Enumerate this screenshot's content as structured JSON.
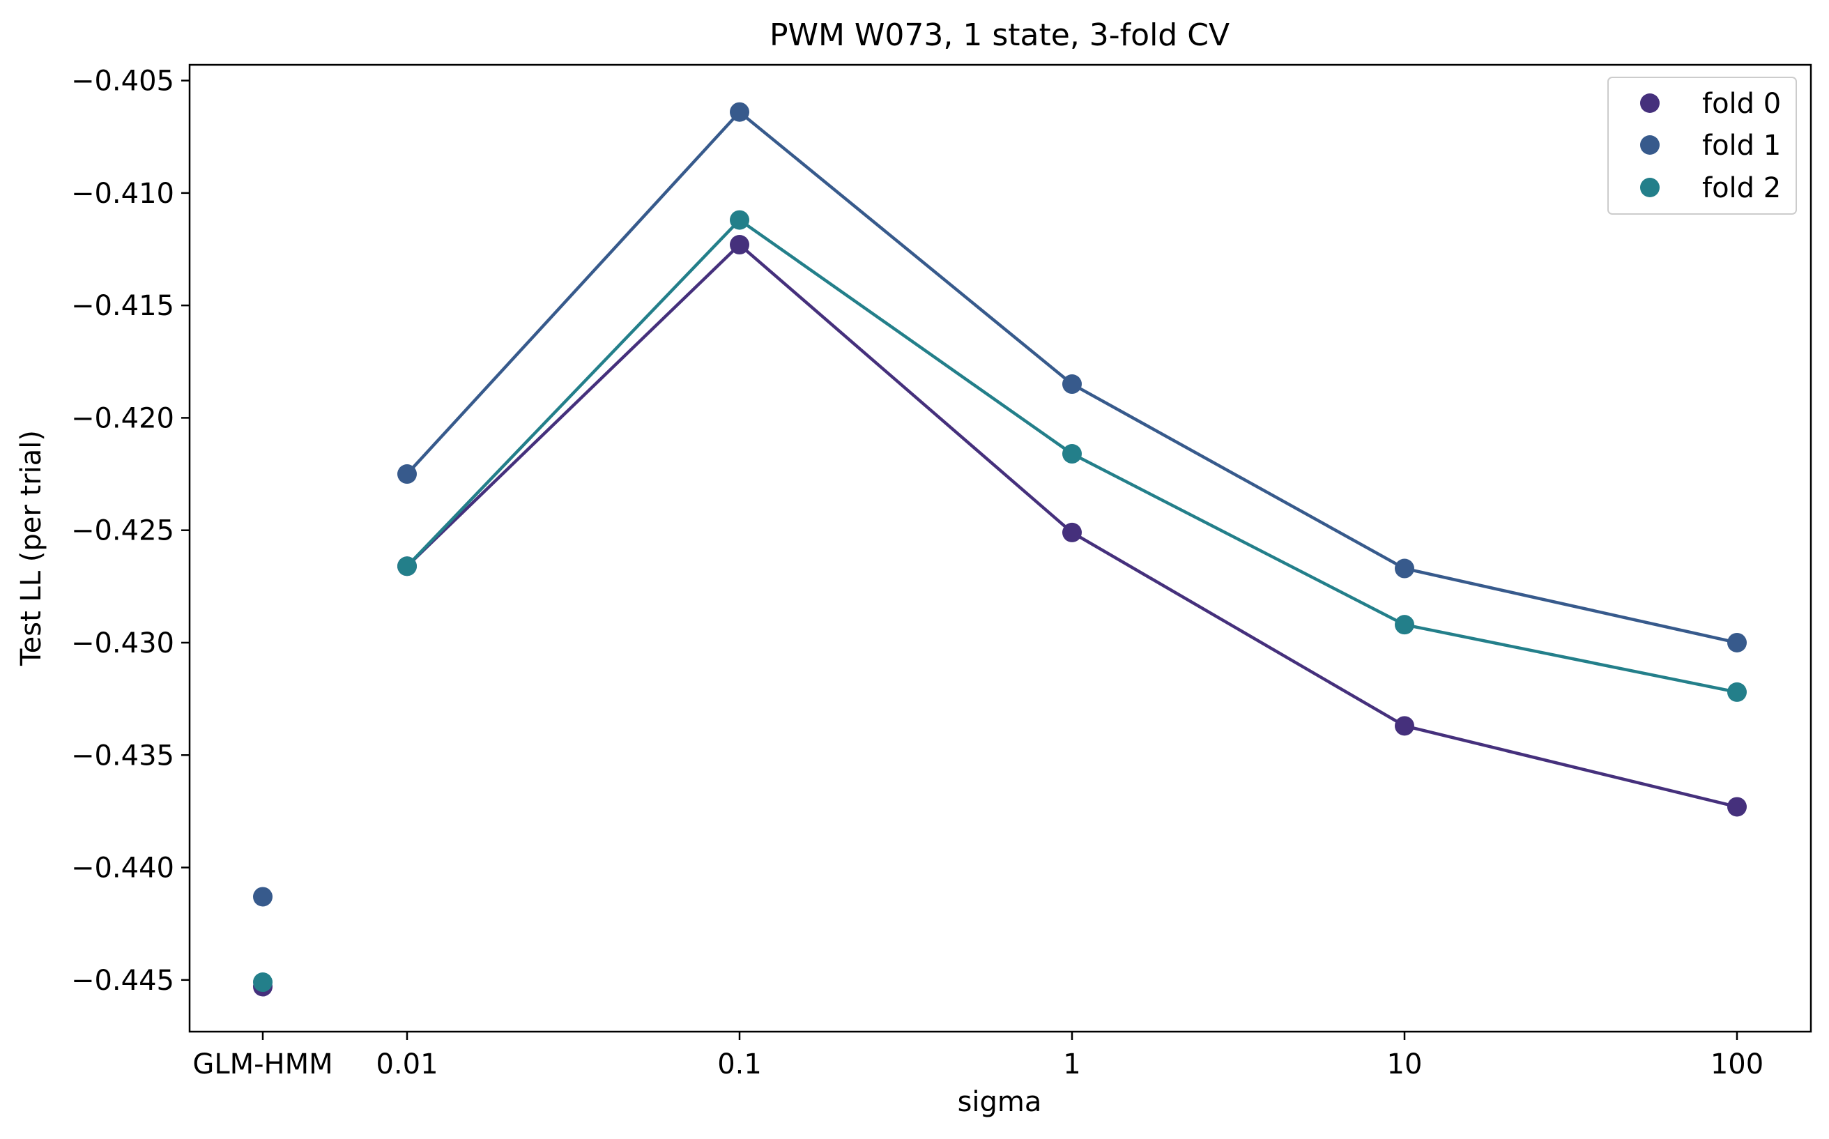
{
  "chart_data": {
    "type": "line",
    "title": "PWM W073, 1 state, 3-fold CV",
    "xlabel": "sigma",
    "ylabel": "Test LL (per trial)",
    "x_categories": [
      "GLM-HMM",
      "0.01",
      "0.1",
      "1",
      "10",
      "100"
    ],
    "ylim": [
      -0.4473,
      -0.4043
    ],
    "yticks": [
      -0.405,
      -0.41,
      -0.415,
      -0.42,
      -0.425,
      -0.43,
      -0.435,
      -0.44,
      -0.445
    ],
    "ytick_labels": [
      "−0.405",
      "−0.410",
      "−0.415",
      "−0.420",
      "−0.425",
      "−0.430",
      "−0.435",
      "−0.440",
      "−0.445"
    ],
    "grid": false,
    "legend_position": "top-right",
    "series": [
      {
        "name": "fold 0",
        "color": "#45307c",
        "glm_hmm": -0.4453,
        "sigma_values": [
          -0.4266,
          -0.4123,
          -0.4251,
          -0.4337,
          -0.4373
        ]
      },
      {
        "name": "fold 1",
        "color": "#375a8c",
        "glm_hmm": -0.4413,
        "sigma_values": [
          -0.4225,
          -0.4064,
          -0.4185,
          -0.4267,
          -0.43
        ]
      },
      {
        "name": "fold 2",
        "color": "#237f8a",
        "glm_hmm": -0.4451,
        "sigma_values": [
          -0.4266,
          -0.4112,
          -0.4216,
          -0.4292,
          -0.4322
        ]
      }
    ]
  }
}
